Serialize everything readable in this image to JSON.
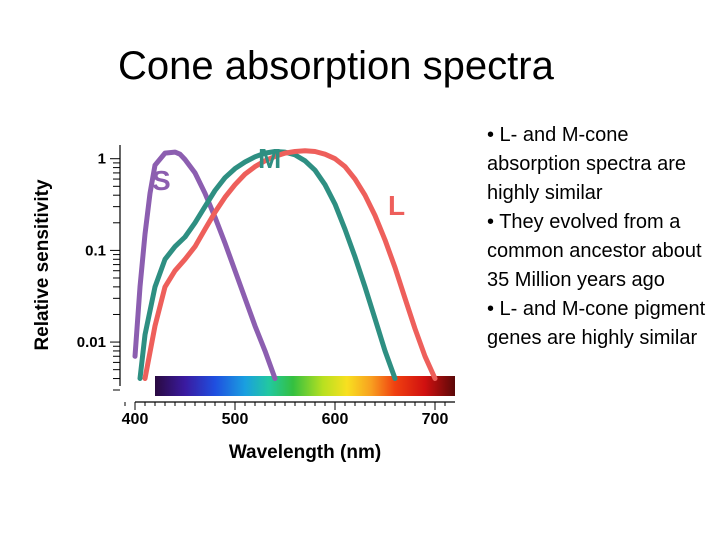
{
  "slide": {
    "title": "Cone absorption spectra",
    "bullets": [
      "• L- and M-cone absorption spectra are highly similar",
      "• They evolved from a  common ancestor about 35 Million years ago",
      "• L- and M-cone pigment genes are highly similar"
    ]
  },
  "chart_data": {
    "type": "line",
    "xlabel": "Wavelength (nm)",
    "ylabel": "Relative sensitivity",
    "xlim": [
      385,
      720
    ],
    "ylim": [
      0.003,
      1.6
    ],
    "y_scale": "log",
    "x_ticks": [
      400,
      500,
      600,
      700
    ],
    "y_ticks": [
      {
        "value": 1,
        "label": "1"
      },
      {
        "value": 0.1,
        "label": "0.1"
      },
      {
        "value": 0.01,
        "label": "0.01"
      }
    ],
    "grid": false,
    "color_spectrum_bar": true,
    "series": [
      {
        "name": "S",
        "color": "#8c5eb0",
        "points": [
          [
            400,
            0.007
          ],
          [
            405,
            0.04
          ],
          [
            410,
            0.15
          ],
          [
            415,
            0.42
          ],
          [
            420,
            0.85
          ],
          [
            430,
            1.15
          ],
          [
            440,
            1.18
          ],
          [
            445,
            1.12
          ],
          [
            450,
            0.98
          ],
          [
            460,
            0.7
          ],
          [
            470,
            0.42
          ],
          [
            480,
            0.23
          ],
          [
            490,
            0.12
          ],
          [
            500,
            0.06
          ],
          [
            510,
            0.03
          ],
          [
            520,
            0.015
          ],
          [
            530,
            0.008
          ],
          [
            540,
            0.004
          ]
        ]
      },
      {
        "name": "M",
        "color": "#2e8f82",
        "points": [
          [
            405,
            0.004
          ],
          [
            410,
            0.012
          ],
          [
            420,
            0.04
          ],
          [
            430,
            0.08
          ],
          [
            440,
            0.11
          ],
          [
            450,
            0.14
          ],
          [
            460,
            0.2
          ],
          [
            470,
            0.3
          ],
          [
            480,
            0.45
          ],
          [
            490,
            0.62
          ],
          [
            500,
            0.78
          ],
          [
            510,
            0.92
          ],
          [
            520,
            1.05
          ],
          [
            530,
            1.15
          ],
          [
            540,
            1.2
          ],
          [
            550,
            1.18
          ],
          [
            560,
            1.1
          ],
          [
            570,
            0.95
          ],
          [
            580,
            0.75
          ],
          [
            590,
            0.52
          ],
          [
            600,
            0.32
          ],
          [
            610,
            0.17
          ],
          [
            620,
            0.085
          ],
          [
            630,
            0.04
          ],
          [
            640,
            0.018
          ],
          [
            650,
            0.008
          ],
          [
            660,
            0.004
          ]
        ]
      },
      {
        "name": "L",
        "color": "#ee5f5b",
        "points": [
          [
            410,
            0.004
          ],
          [
            420,
            0.015
          ],
          [
            430,
            0.04
          ],
          [
            440,
            0.06
          ],
          [
            450,
            0.08
          ],
          [
            460,
            0.11
          ],
          [
            470,
            0.17
          ],
          [
            480,
            0.26
          ],
          [
            490,
            0.38
          ],
          [
            500,
            0.52
          ],
          [
            510,
            0.68
          ],
          [
            520,
            0.82
          ],
          [
            530,
            0.95
          ],
          [
            540,
            1.06
          ],
          [
            550,
            1.15
          ],
          [
            560,
            1.2
          ],
          [
            570,
            1.22
          ],
          [
            580,
            1.2
          ],
          [
            590,
            1.12
          ],
          [
            600,
            1.0
          ],
          [
            610,
            0.82
          ],
          [
            620,
            0.6
          ],
          [
            630,
            0.4
          ],
          [
            640,
            0.24
          ],
          [
            650,
            0.13
          ],
          [
            660,
            0.065
          ],
          [
            670,
            0.03
          ],
          [
            680,
            0.014
          ],
          [
            690,
            0.007
          ],
          [
            700,
            0.004
          ]
        ]
      }
    ]
  }
}
